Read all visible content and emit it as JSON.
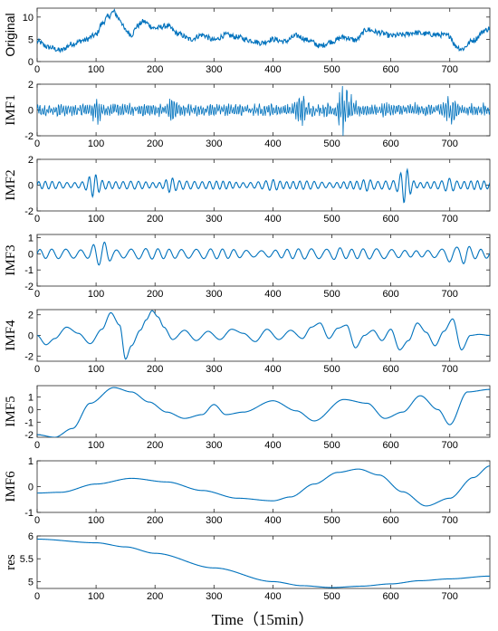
{
  "figure": {
    "xlabel": "Time（15min）",
    "line_color": "#0072BD"
  },
  "chart_data": [
    {
      "type": "line",
      "ylabel": "Original",
      "xlim": [
        0,
        768
      ],
      "ylim": [
        0,
        12
      ],
      "yticks": [
        0,
        5,
        10
      ],
      "xticks": [
        0,
        100,
        200,
        300,
        400,
        500,
        600,
        700
      ],
      "grid": false,
      "x": [
        0,
        20,
        40,
        60,
        80,
        100,
        110,
        120,
        130,
        140,
        150,
        160,
        170,
        180,
        200,
        220,
        240,
        260,
        280,
        300,
        320,
        340,
        360,
        380,
        400,
        420,
        440,
        460,
        480,
        500,
        520,
        540,
        560,
        580,
        600,
        620,
        640,
        660,
        680,
        700,
        710,
        720,
        740,
        760,
        768
      ],
      "values": [
        4.5,
        3.2,
        2.5,
        4.0,
        4.8,
        6.0,
        8.5,
        10.0,
        11.2,
        9.5,
        7.0,
        6.0,
        8.0,
        9.0,
        7.5,
        8.0,
        6.2,
        5.0,
        6.0,
        4.8,
        6.0,
        5.5,
        4.8,
        4.2,
        5.0,
        4.5,
        5.8,
        4.8,
        3.5,
        4.5,
        5.5,
        4.8,
        7.2,
        6.5,
        5.8,
        6.0,
        6.5,
        6.2,
        6.0,
        5.8,
        3.5,
        2.8,
        4.8,
        7.0,
        7.5
      ],
      "noise": 0.6
    },
    {
      "type": "line",
      "ylabel": "IMF1",
      "xlim": [
        0,
        768
      ],
      "ylim": [
        -2,
        2
      ],
      "yticks": [
        -2,
        0,
        2
      ],
      "xticks": [
        0,
        100,
        200,
        300,
        400,
        500,
        600,
        700
      ],
      "grid": false,
      "base_amplitude": 0.45,
      "period": 4,
      "bursts": [
        {
          "x": 230,
          "a": 0.9
        },
        {
          "x": 450,
          "a": 1.2
        },
        {
          "x": 520,
          "a": 1.8
        },
        {
          "x": 525,
          "a": 1.6
        },
        {
          "x": 700,
          "a": 1.1
        },
        {
          "x": 100,
          "a": 0.9
        }
      ]
    },
    {
      "type": "line",
      "ylabel": "IMF2",
      "xlim": [
        0,
        768
      ],
      "ylim": [
        -2,
        2
      ],
      "yticks": [
        -2,
        0,
        2
      ],
      "xticks": [
        0,
        100,
        200,
        300,
        400,
        500,
        600,
        700
      ],
      "grid": false,
      "base_amplitude": 0.35,
      "period": 12,
      "bursts": [
        {
          "x": 95,
          "a": 1.0
        },
        {
          "x": 225,
          "a": 0.8
        },
        {
          "x": 400,
          "a": 0.5
        },
        {
          "x": 560,
          "a": 0.6
        },
        {
          "x": 625,
          "a": 1.9
        },
        {
          "x": 700,
          "a": 0.7
        }
      ]
    },
    {
      "type": "line",
      "ylabel": "IMF3",
      "xlim": [
        0,
        768
      ],
      "ylim": [
        -2,
        1.2
      ],
      "yticks": [
        -2,
        -1,
        0,
        1
      ],
      "xticks": [
        0,
        100,
        200,
        300,
        400,
        500,
        600,
        700
      ],
      "grid": false,
      "base_amplitude": 0.35,
      "period": 22,
      "bursts": [
        {
          "x": 100,
          "a": 1.1
        },
        {
          "x": 115,
          "a": 1.2
        },
        {
          "x": 510,
          "a": 0.5
        },
        {
          "x": 700,
          "a": 0.6
        },
        {
          "x": 725,
          "a": 0.7
        }
      ]
    },
    {
      "type": "line",
      "ylabel": "IMF4",
      "xlim": [
        0,
        768
      ],
      "ylim": [
        -2.5,
        2.5
      ],
      "yticks": [
        -2,
        0,
        2
      ],
      "xticks": [
        0,
        100,
        200,
        300,
        400,
        500,
        600,
        700
      ],
      "grid": false,
      "x": [
        0,
        15,
        30,
        50,
        70,
        90,
        110,
        125,
        140,
        150,
        160,
        175,
        185,
        195,
        205,
        215,
        230,
        250,
        270,
        290,
        310,
        330,
        350,
        370,
        390,
        410,
        430,
        450,
        465,
        480,
        495,
        510,
        525,
        540,
        555,
        570,
        585,
        600,
        615,
        630,
        645,
        660,
        675,
        690,
        705,
        720,
        735,
        750,
        768
      ],
      "values": [
        0.0,
        -0.9,
        -0.3,
        0.8,
        0.2,
        -0.8,
        0.6,
        2.2,
        1.0,
        -2.3,
        -1.0,
        0.5,
        1.5,
        2.4,
        1.8,
        0.8,
        -0.4,
        0.5,
        -0.5,
        0.4,
        -0.4,
        0.6,
        0.2,
        -0.6,
        0.6,
        -0.4,
        0.5,
        -0.3,
        0.8,
        1.2,
        -0.3,
        0.7,
        1.0,
        -1.2,
        0.0,
        0.5,
        -0.5,
        0.6,
        -1.4,
        -0.5,
        1.2,
        0.3,
        -1.0,
        0.4,
        1.6,
        -1.4,
        0.0,
        0.1,
        0.0
      ]
    },
    {
      "type": "line",
      "ylabel": "IMF5",
      "xlim": [
        0,
        768
      ],
      "ylim": [
        -2.2,
        1.9
      ],
      "yticks": [
        -2,
        -1,
        0,
        1
      ],
      "xticks": [
        0,
        100,
        200,
        300,
        400,
        500,
        600,
        700
      ],
      "grid": false,
      "x": [
        0,
        30,
        60,
        90,
        130,
        160,
        190,
        220,
        250,
        280,
        300,
        320,
        350,
        400,
        440,
        470,
        520,
        560,
        590,
        620,
        650,
        680,
        700,
        730,
        768
      ],
      "values": [
        -2.0,
        -2.2,
        -1.5,
        0.5,
        1.75,
        1.4,
        0.6,
        -0.2,
        -0.7,
        -0.4,
        0.4,
        -0.4,
        -0.2,
        0.7,
        -0.1,
        -0.9,
        0.8,
        0.5,
        -0.7,
        -0.2,
        1.1,
        0.0,
        -1.2,
        1.4,
        1.6
      ]
    },
    {
      "type": "line",
      "ylabel": "IMF6",
      "xlim": [
        0,
        768
      ],
      "ylim": [
        -1,
        1
      ],
      "yticks": [
        -1,
        0,
        1
      ],
      "xticks": [
        0,
        100,
        200,
        300,
        400,
        500,
        600,
        700
      ],
      "grid": false,
      "x": [
        0,
        40,
        100,
        160,
        220,
        280,
        340,
        400,
        430,
        470,
        510,
        545,
        580,
        620,
        660,
        700,
        740,
        768
      ],
      "values": [
        -0.25,
        -0.22,
        0.1,
        0.32,
        0.18,
        -0.15,
        -0.45,
        -0.55,
        -0.4,
        0.1,
        0.55,
        0.68,
        0.45,
        -0.2,
        -0.75,
        -0.45,
        0.35,
        0.8
      ]
    },
    {
      "type": "line",
      "ylabel": "res",
      "xlim": [
        0,
        768
      ],
      "ylim": [
        4.85,
        6.0
      ],
      "yticks": [
        5,
        5.5,
        6
      ],
      "xticks": [
        0,
        100,
        200,
        300,
        400,
        500,
        600,
        700
      ],
      "grid": false,
      "x": [
        0,
        100,
        150,
        200,
        300,
        400,
        450,
        500,
        550,
        600,
        650,
        700,
        768
      ],
      "values": [
        5.93,
        5.85,
        5.76,
        5.62,
        5.3,
        5.0,
        4.91,
        4.87,
        4.9,
        4.95,
        5.02,
        5.06,
        5.12
      ]
    }
  ]
}
